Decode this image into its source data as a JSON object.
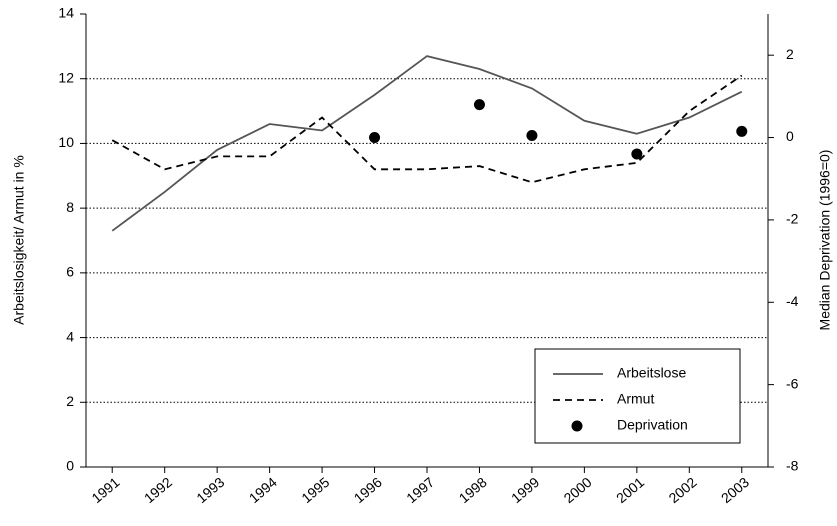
{
  "chart_data": {
    "type": "line",
    "y_label": "Arbeitslosigkeit/ Armut in %",
    "y2_label": "Median Deprivation (1996=0)",
    "categories": [
      "1991",
      "1992",
      "1993",
      "1994",
      "1995",
      "1996",
      "1997",
      "1998",
      "1999",
      "2000",
      "2001",
      "2002",
      "2003"
    ],
    "series": [
      {
        "name": "Arbeitslose",
        "color": "#555555",
        "style": "solid",
        "values": [
          7.3,
          8.5,
          9.8,
          10.6,
          10.4,
          11.5,
          12.7,
          12.3,
          11.7,
          10.7,
          10.3,
          10.8,
          11.6
        ]
      },
      {
        "name": "Armut",
        "color": "#000000",
        "style": "dashed",
        "values": [
          10.1,
          9.2,
          9.6,
          9.6,
          10.8,
          9.2,
          9.2,
          9.3,
          8.8,
          9.2,
          9.4,
          11.0,
          12.1
        ]
      },
      {
        "name": "Deprivation",
        "color": "#000000",
        "style": "points",
        "axis": "y2",
        "values": [
          null,
          null,
          null,
          null,
          null,
          0,
          null,
          0.8,
          0.05,
          null,
          -0.4,
          null,
          0.15
        ]
      }
    ],
    "ylim": [
      0,
      14
    ],
    "yticks": [
      0,
      2,
      4,
      6,
      8,
      10,
      12,
      14
    ],
    "y2lim": [
      -8,
      3
    ],
    "y2ticks": [
      -8,
      -6,
      -4,
      -2,
      0,
      2
    ],
    "grid": true,
    "legend": "lower right"
  }
}
